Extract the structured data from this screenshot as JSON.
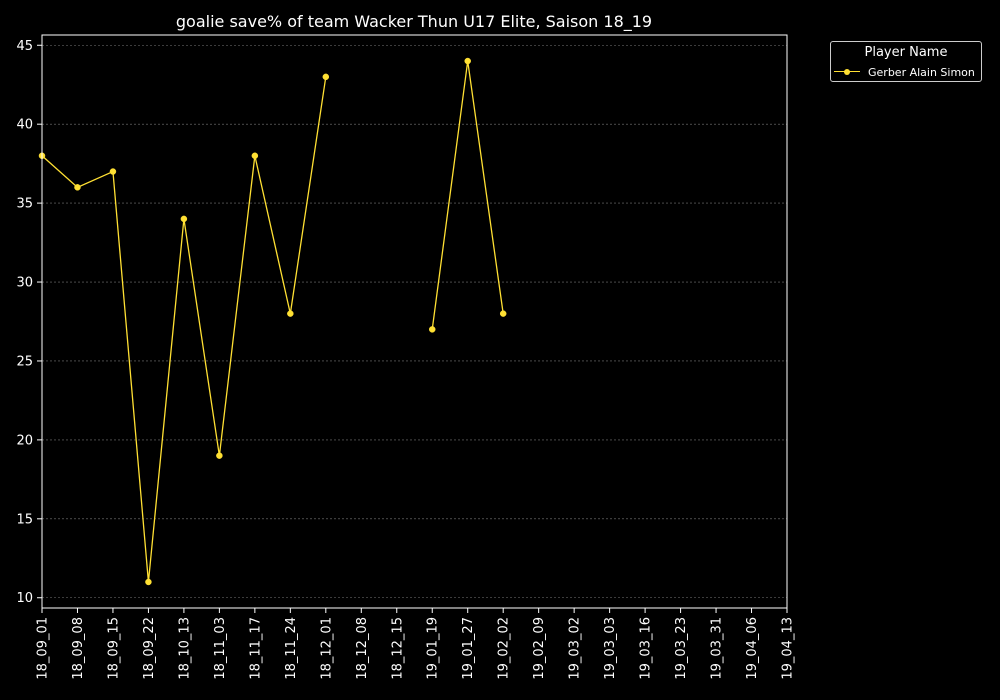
{
  "chart_data": {
    "type": "line",
    "title": "goalie save% of team Wacker Thun U17 Elite, Saison 18_19",
    "xlabel": "",
    "ylabel": "",
    "categories": [
      "18_09_01",
      "18_09_08",
      "18_09_15",
      "18_09_22",
      "18_10_13",
      "18_11_03",
      "18_11_17",
      "18_11_24",
      "18_12_01",
      "18_12_08",
      "18_12_15",
      "19_01_19",
      "19_01_27",
      "19_02_02",
      "19_02_09",
      "19_03_02",
      "19_03_03",
      "19_03_16",
      "19_03_23",
      "19_03_31",
      "19_04_06",
      "19_04_13"
    ],
    "series": [
      {
        "name": "Gerber Alain Simon",
        "values": [
          38,
          36,
          37,
          11,
          34,
          19,
          38,
          28,
          43,
          null,
          null,
          27,
          44,
          28,
          null,
          null,
          null,
          null,
          null,
          null,
          null,
          null
        ]
      }
    ],
    "ylim": [
      9.35,
      45.65
    ],
    "yticks": [
      10,
      15,
      20,
      25,
      30,
      35,
      40,
      45
    ],
    "grid": true,
    "legend": {
      "title": "Player Name",
      "placement": "outside-top-right"
    },
    "colors": {
      "background": "#000000",
      "line": "#ffe033",
      "grid": "#777777",
      "axis": "#ffffff"
    }
  }
}
